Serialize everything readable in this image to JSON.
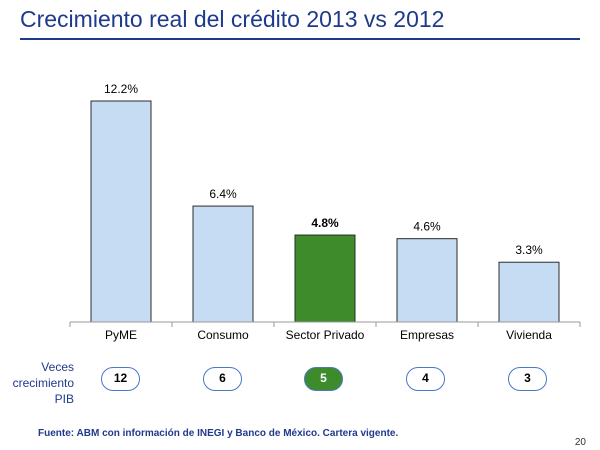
{
  "title": "Crecimiento real del crédito 2013 vs 2012",
  "chart_data": {
    "type": "bar",
    "categories": [
      "PyME",
      "Consumo",
      "Sector Privado",
      "Empresas",
      "Vivienda"
    ],
    "values": [
      12.2,
      6.4,
      4.8,
      4.6,
      3.3
    ],
    "value_labels": [
      "12.2%",
      "6.4%",
      "4.8%",
      "4.6%",
      "3.3%"
    ],
    "highlight_index": 2,
    "colors": {
      "bar": "#c5dcf2",
      "bar_border": "#2b2b2b",
      "highlight": "#3d8b2a"
    },
    "ylim": [
      0,
      12.2
    ],
    "grid": false
  },
  "ratio_row": {
    "label_lines": [
      "Veces",
      "crecimiento",
      "PIB"
    ],
    "values": [
      "12",
      "6",
      "5",
      "4",
      "3"
    ]
  },
  "source": "Fuente: ABM con información de  INEGI y Banco de México. Cartera vigente.",
  "page_number": "20"
}
